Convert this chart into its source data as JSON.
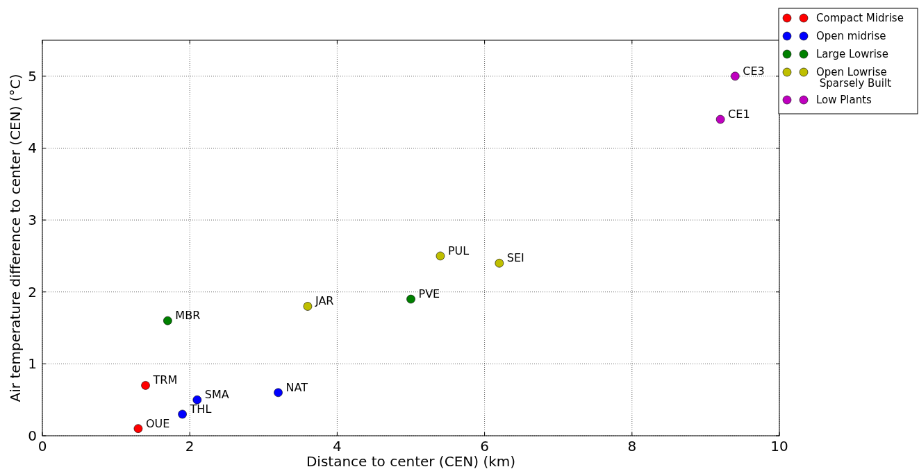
{
  "chart_data": {
    "type": "scatter",
    "xlabel": "Distance to center (CEN) (km)",
    "ylabel": "Air temperature difference to center (CEN) (°C)",
    "xlim": [
      0,
      10
    ],
    "ylim": [
      0,
      5.5
    ],
    "xticks": [
      0,
      2,
      4,
      6,
      8,
      10
    ],
    "yticks": [
      0,
      1,
      2,
      3,
      4,
      5
    ],
    "grid": true,
    "legend": "top right",
    "marker": "circle",
    "series": [
      {
        "name": "Compact Midrise",
        "color": "#ff0000",
        "x": [
          1.3,
          1.4
        ],
        "values": [
          0.1,
          0.7
        ]
      },
      {
        "name": "Open midrise",
        "color": "#0000ff",
        "x": [
          1.9,
          2.1,
          3.2
        ],
        "values": [
          0.3,
          0.5,
          0.6
        ]
      },
      {
        "name": "Large Lowrise",
        "color": "#008000",
        "x": [
          1.7,
          5.0
        ],
        "values": [
          1.6,
          1.9
        ]
      },
      {
        "name": "Open Lowrise\n Sparsely Built",
        "color": "#bfbf00",
        "x": [
          3.6,
          5.4,
          6.2
        ],
        "values": [
          1.8,
          2.5,
          2.4
        ]
      },
      {
        "name": "Low Plants",
        "color": "#bf00bf",
        "x": [
          9.2,
          9.4
        ],
        "values": [
          4.4,
          5.0
        ]
      }
    ],
    "annotations": [
      {
        "text": "OUE",
        "x": 1.3,
        "y": 0.1
      },
      {
        "text": "TRM",
        "x": 1.4,
        "y": 0.7
      },
      {
        "text": "THL",
        "x": 1.9,
        "y": 0.3
      },
      {
        "text": "SMA",
        "x": 2.1,
        "y": 0.5
      },
      {
        "text": "NAT",
        "x": 3.2,
        "y": 0.6
      },
      {
        "text": "MBR",
        "x": 1.7,
        "y": 1.6
      },
      {
        "text": "PVE",
        "x": 5.0,
        "y": 1.9
      },
      {
        "text": "JAR",
        "x": 3.6,
        "y": 1.8
      },
      {
        "text": "PUL",
        "x": 5.4,
        "y": 2.5
      },
      {
        "text": "SEI",
        "x": 6.2,
        "y": 2.4
      },
      {
        "text": "CE1",
        "x": 9.2,
        "y": 4.4
      },
      {
        "text": "CE3",
        "x": 9.4,
        "y": 5.0
      }
    ]
  }
}
